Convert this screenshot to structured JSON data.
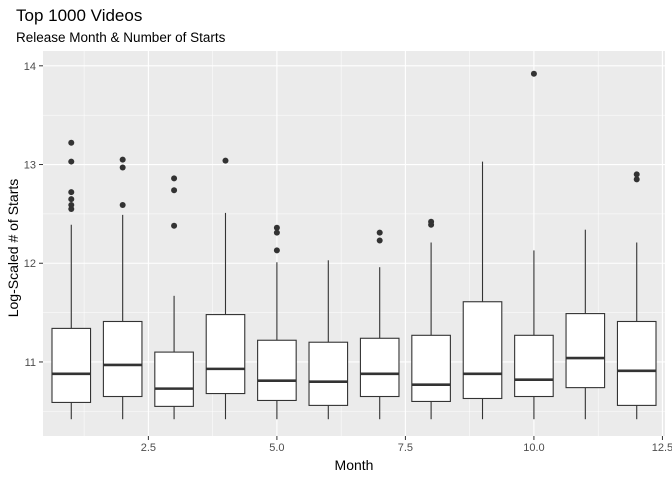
{
  "chart_data": {
    "type": "boxplot",
    "title": "Top 1000 Videos",
    "subtitle": "Release Month & Number of Starts",
    "xlabel": "Month",
    "ylabel": "Log-Scaled # of Starts",
    "xlim": [
      0.45,
      12.55
    ],
    "ylim": [
      10.25,
      14.15
    ],
    "x_ticks": [
      2.5,
      5.0,
      7.5,
      10.0,
      12.5
    ],
    "x_tick_labels": [
      "2.5",
      "5.0",
      "7.5",
      "10.0",
      "12.5"
    ],
    "y_ticks": [
      11,
      12,
      13,
      14
    ],
    "y_tick_labels": [
      "11",
      "12",
      "13",
      "14"
    ],
    "grid": true,
    "legend": "none",
    "boxes": [
      {
        "x": 1,
        "min": 10.42,
        "q1": 10.59,
        "median": 10.88,
        "q3": 11.34,
        "max": 12.39,
        "outliers": [
          12.55,
          12.59,
          12.65,
          12.72,
          13.03,
          13.22
        ]
      },
      {
        "x": 2,
        "min": 10.42,
        "q1": 10.65,
        "median": 10.97,
        "q3": 11.41,
        "max": 12.49,
        "outliers": [
          12.59,
          12.97,
          13.05
        ]
      },
      {
        "x": 3,
        "min": 10.42,
        "q1": 10.55,
        "median": 10.73,
        "q3": 11.1,
        "max": 11.67,
        "outliers": [
          12.38,
          12.74,
          12.86
        ]
      },
      {
        "x": 4,
        "min": 10.42,
        "q1": 10.68,
        "median": 10.93,
        "q3": 11.48,
        "max": 12.51,
        "outliers": [
          13.04
        ]
      },
      {
        "x": 5,
        "min": 10.42,
        "q1": 10.61,
        "median": 10.81,
        "q3": 11.22,
        "max": 12.01,
        "outliers": [
          12.13,
          12.31,
          12.36
        ]
      },
      {
        "x": 6,
        "min": 10.42,
        "q1": 10.56,
        "median": 10.8,
        "q3": 11.2,
        "max": 12.03,
        "outliers": []
      },
      {
        "x": 7,
        "min": 10.42,
        "q1": 10.65,
        "median": 10.88,
        "q3": 11.24,
        "max": 11.96,
        "outliers": [
          12.23,
          12.31
        ]
      },
      {
        "x": 8,
        "min": 10.42,
        "q1": 10.6,
        "median": 10.77,
        "q3": 11.27,
        "max": 12.21,
        "outliers": [
          12.39,
          12.42
        ]
      },
      {
        "x": 9,
        "min": 10.42,
        "q1": 10.63,
        "median": 10.88,
        "q3": 11.61,
        "max": 13.03,
        "outliers": []
      },
      {
        "x": 10,
        "min": 10.42,
        "q1": 10.65,
        "median": 10.82,
        "q3": 11.27,
        "max": 12.13,
        "outliers": [
          13.92
        ]
      },
      {
        "x": 11,
        "min": 10.42,
        "q1": 10.74,
        "median": 11.04,
        "q3": 11.49,
        "max": 12.34,
        "outliers": []
      },
      {
        "x": 12,
        "min": 10.42,
        "q1": 10.56,
        "median": 10.91,
        "q3": 11.41,
        "max": 12.21,
        "outliers": [
          12.85,
          12.9
        ]
      }
    ],
    "colors": {
      "panel": "#EBEBEB",
      "grid_major": "#FFFFFF",
      "box_fill": "#FFFFFF",
      "box_line": "#333333",
      "tick_text": "#4D4D4D"
    }
  }
}
